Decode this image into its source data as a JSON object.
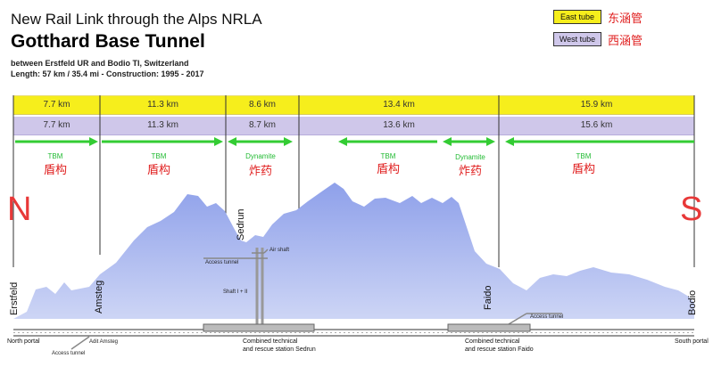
{
  "header": {
    "subtitle": "New Rail Link through the Alps NRLA",
    "title": "Gotthard Base Tunnel",
    "location": "between Erstfeld UR and Bodio TI, Switzerland",
    "details": "Length: 57 km / 35.4 mi  -  Construction: 1995 - 2017"
  },
  "legend": {
    "east_label": "East tube",
    "east_cn": "东涵管",
    "east_color": "#f6ee1c",
    "west_label": "West tube",
    "west_cn": "西涵管",
    "west_color": "#cfc7ea"
  },
  "east_tube": [
    "7.7 km",
    "11.3 km",
    "8.6 km",
    "13.4 km",
    "15.9 km"
  ],
  "west_tube": [
    "7.7 km",
    "11.3 km",
    "8.7 km",
    "13.6 km",
    "15.6 km"
  ],
  "methods": [
    {
      "en": "TBM",
      "cn": "盾构",
      "dir": "right"
    },
    {
      "en": "TBM",
      "cn": "盾构",
      "dir": "right"
    },
    {
      "en": "Dynamite",
      "cn": "炸药",
      "dir": "both"
    },
    {
      "en": "TBM",
      "cn": "盾构",
      "dir": "left"
    },
    {
      "en": "Dynamite",
      "cn": "炸药",
      "dir": "both"
    },
    {
      "en": "TBM",
      "cn": "盾构",
      "dir": "left"
    }
  ],
  "compass": {
    "north": "N",
    "south": "S"
  },
  "places": {
    "erstfeld": "Erstfeld",
    "amsteg": "Amsteg",
    "sedrun": "Sedrun",
    "faido": "Faido",
    "bodio": "Bodio"
  },
  "annotations": {
    "air_shaft": "Air shaft",
    "access_tunnel_sedrun": "Access tunnel",
    "shaft": "Shaft I + II",
    "access_tunnel_faido": "Access tunnel",
    "adit_amsteg": "Adit Amsteg",
    "access_tunnel_amsteg": "Access tunnel",
    "north_portal": "North portal",
    "south_portal": "South portal",
    "sedrun_station_1": "Combined technical",
    "sedrun_station_2": "and rescue station Sedrun",
    "faido_station_1": "Combined technical",
    "faido_station_2": "and rescue station Faido"
  },
  "colors": {
    "arrow": "#33cc33",
    "mountain_top": "#8ea0ea",
    "mountain_bottom": "#c7d0f4",
    "accent_red": "#e83838"
  }
}
